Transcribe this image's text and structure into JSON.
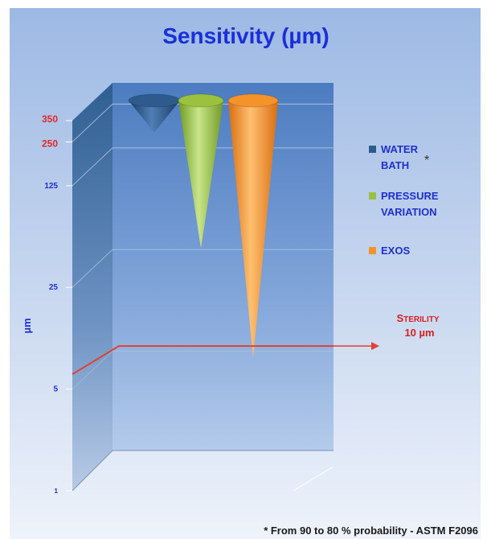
{
  "chart_data": {
    "type": "bar",
    "title": "Sensitivity (µm)",
    "ylabel": "µm",
    "y_scale": "log",
    "yticks": [
      {
        "value": 350,
        "label": "350",
        "color": "#e02828"
      },
      {
        "value": 250,
        "label": "250",
        "color": "#e02828"
      },
      {
        "value": 125,
        "label": "125",
        "color": "#1f2fd0"
      },
      {
        "value": 25,
        "label": "25",
        "color": "#1f2fd0"
      },
      {
        "value": 5,
        "label": "5",
        "color": "#1f2fd0"
      },
      {
        "value": 1,
        "label": "1",
        "color": "#1f2fd0"
      }
    ],
    "series": [
      {
        "name": "WATER BATH",
        "value": 250,
        "color": "#2d5b8e",
        "legend": [
          "WATER",
          "BATH"
        ],
        "mark": "*"
      },
      {
        "name": "PRESSURE VARIATION",
        "value": 40,
        "color": "#9bc13e",
        "legend": [
          "PRESSURE",
          "VARIATION"
        ]
      },
      {
        "name": "EXOS",
        "value": 7,
        "color": "#f5922a",
        "legend": [
          "EXOS"
        ]
      }
    ],
    "threshold": {
      "value": 10,
      "label_part1": "S",
      "label_part2": "TERILITY",
      "label_value": "10 µm",
      "color": "#e04030"
    },
    "footnote": "* From 90 to 80 % probability - ASTM F2096"
  }
}
